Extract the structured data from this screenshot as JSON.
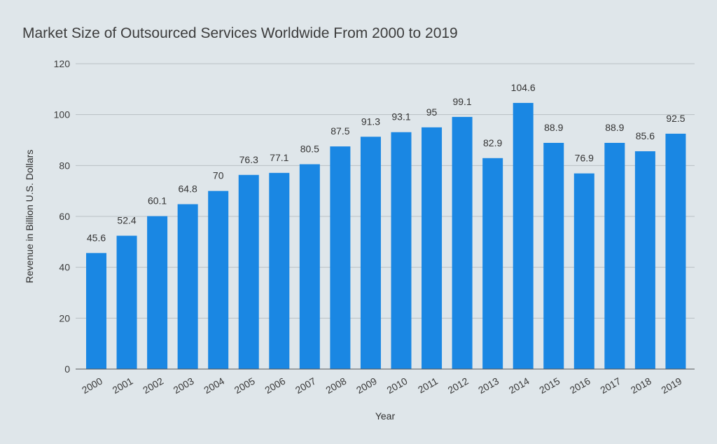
{
  "chart_data": {
    "type": "bar",
    "title": "Market Size of Outsourced Services Worldwide From 2000 to 2019",
    "xlabel": "Year",
    "ylabel": "Revenue in Billion U.S. Dollars",
    "categories": [
      "2000",
      "2001",
      "2002",
      "2003",
      "2004",
      "2005",
      "2006",
      "2007",
      "2008",
      "2009",
      "2010",
      "2011",
      "2012",
      "2013",
      "2014",
      "2015",
      "2016",
      "2017",
      "2018",
      "2019"
    ],
    "values": [
      45.6,
      52.4,
      60.1,
      64.8,
      70,
      76.3,
      77.1,
      80.5,
      87.5,
      91.3,
      93.1,
      95,
      99.1,
      82.9,
      104.6,
      88.9,
      76.9,
      88.9,
      85.6,
      92.5
    ],
    "data_labels": [
      "45.6",
      "52.4",
      "60.1",
      "64.8",
      "70",
      "76.3",
      "77.1",
      "80.5",
      "87.5",
      "91.3",
      "93.1",
      "95",
      "99.1",
      "82.9",
      "104.6",
      "88.9",
      "76.9",
      "88.9",
      "85.6",
      "92.5"
    ],
    "ylim": [
      0,
      120
    ],
    "yticks": [
      "0",
      "20",
      "40",
      "60",
      "80",
      "100",
      "120"
    ],
    "grid": true,
    "legend": "none",
    "bar_color": "#1a87e3",
    "background_color": "#dfe6ea"
  }
}
